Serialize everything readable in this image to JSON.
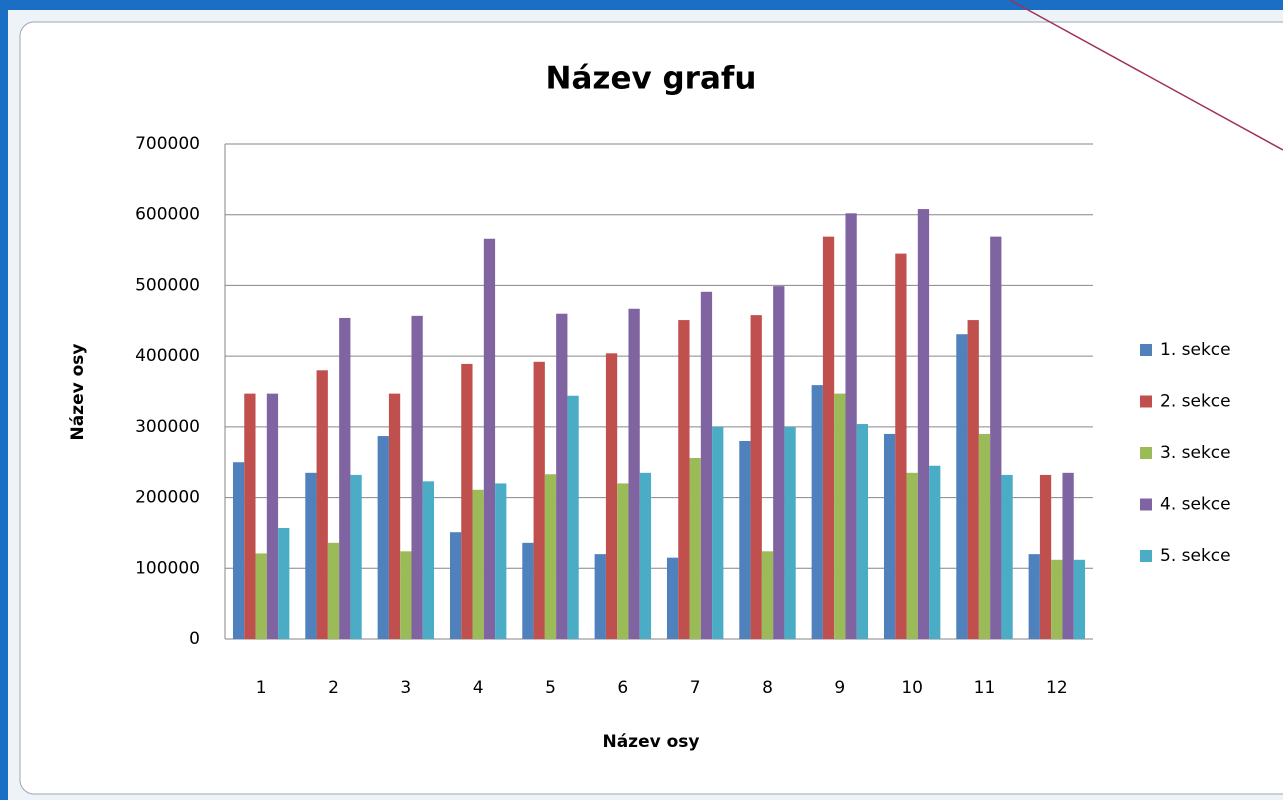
{
  "chart_data": {
    "type": "bar",
    "title": "Název grafu",
    "x_label": "Název osy",
    "y_label": "Název osy",
    "categories": [
      "1",
      "2",
      "3",
      "4",
      "5",
      "6",
      "7",
      "8",
      "9",
      "10",
      "11",
      "12"
    ],
    "series": [
      {
        "name": "1. sekce",
        "color": "#4f81bd",
        "values": [
          250000,
          235000,
          287000,
          151000,
          136000,
          120000,
          115000,
          280000,
          359000,
          290000,
          431000,
          120000
        ]
      },
      {
        "name": "2. sekce",
        "color": "#c0504d",
        "values": [
          347000,
          380000,
          347000,
          389000,
          392000,
          404000,
          451000,
          458000,
          569000,
          545000,
          451000,
          232000
        ]
      },
      {
        "name": "3. sekce",
        "color": "#9bbb59",
        "values": [
          121000,
          136000,
          124000,
          211000,
          233000,
          220000,
          256000,
          124000,
          347000,
          235000,
          290000,
          112000
        ]
      },
      {
        "name": "4. sekce",
        "color": "#8064a2",
        "values": [
          347000,
          454000,
          457000,
          566000,
          460000,
          467000,
          491000,
          499000,
          602000,
          608000,
          569000,
          235000
        ]
      },
      {
        "name": "5. sekce",
        "color": "#4bacc6",
        "values": [
          157000,
          232000,
          223000,
          220000,
          344000,
          235000,
          300000,
          300000,
          304000,
          245000,
          232000,
          112000
        ]
      }
    ],
    "ylim": [
      0,
      700000
    ],
    "yticks": [
      0,
      100000,
      200000,
      300000,
      400000,
      500000,
      600000,
      700000
    ],
    "grid": true,
    "legend": "right"
  }
}
